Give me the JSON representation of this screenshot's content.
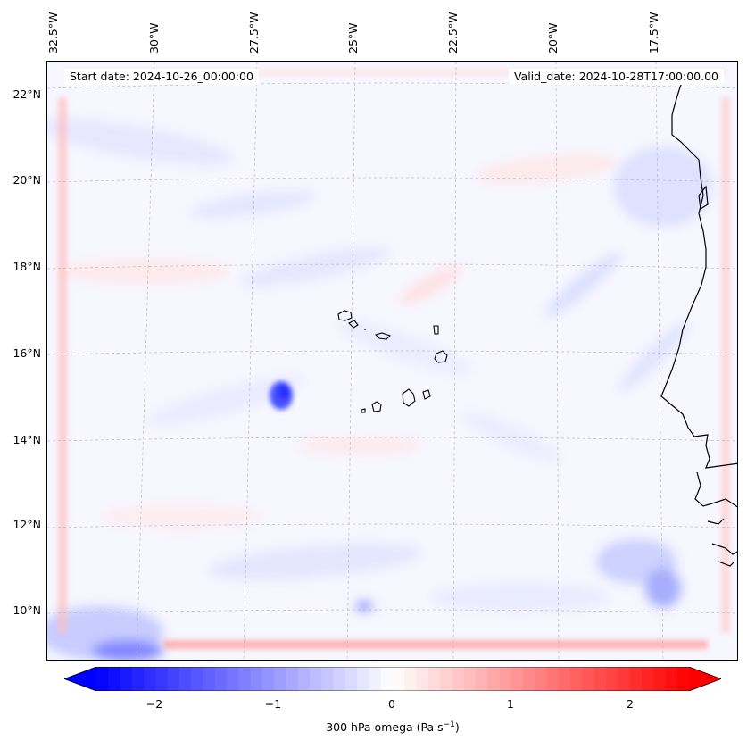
{
  "map": {
    "start_date": "Start date: 2024-10-26_00:00:00",
    "valid_date": "Valid_date: 2024-10-28T17:00:00.00",
    "lon_labels": [
      "32.5°W",
      "30°W",
      "27.5°W",
      "25°W",
      "22.5°W",
      "20°W",
      "17.5°W"
    ],
    "lat_labels": [
      "22°N",
      "20°N",
      "18°N",
      "16°N",
      "14°N",
      "12°N",
      "10°N"
    ]
  },
  "colorbar": {
    "ticks": [
      "−2",
      "−1",
      "0",
      "1",
      "2"
    ],
    "label_main": "300 hPa omega (Pa s",
    "label_sup": "−1",
    "label_end": ")",
    "range": [
      -2.5,
      2.5
    ],
    "colors": {
      "negative": "#0000ff",
      "zero": "#ffffff",
      "positive": "#ff0000"
    }
  }
}
